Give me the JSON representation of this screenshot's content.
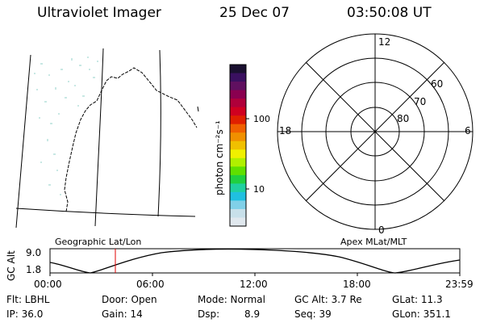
{
  "header": {
    "instrument": "Ultraviolet Imager",
    "date": "25 Dec 07",
    "time": "03:50:08 UT"
  },
  "colorbar": {
    "unit": "photon cm⁻²s⁻¹",
    "ticks": [
      {
        "label": "100"
      },
      {
        "label": "10"
      }
    ],
    "colors": [
      "#1a1030",
      "#3a1060",
      "#601060",
      "#8a0050",
      "#b0003a",
      "#d00020",
      "#e02000",
      "#f06000",
      "#f09000",
      "#f0c000",
      "#f0f000",
      "#b0f000",
      "#60e000",
      "#20d040",
      "#20d0a0",
      "#20c0e0",
      "#80d0e8",
      "#c8e0ea",
      "#e0e8ee"
    ]
  },
  "polar": {
    "labels": {
      "top": "12",
      "bottom": "0",
      "left": "18",
      "right": "6",
      "lat60": "60",
      "lat70": "70",
      "lat80": "80"
    }
  },
  "timeline": {
    "left_caption": "Geographic Lat/Lon",
    "right_caption": "Apex MLat/MLT",
    "axis_label": "GC Alt",
    "y_top": "9.0",
    "y_bottom": "1.8",
    "x_ticks": [
      "00:00",
      "06:00",
      "12:00",
      "18:00",
      "23:59"
    ]
  },
  "status": {
    "row1": {
      "flt": "Flt: LBHL",
      "door": "Door: Open",
      "mode": "Mode: Normal",
      "gcalt": "GC Alt: 3.7 Re",
      "glat": "GLat:  11.3"
    },
    "row2": {
      "ip": "IP: 36.0",
      "gain": "Gain: 14",
      "dsp_label": "Dsp:",
      "dsp_value": "8.9",
      "seq": "Seq: 39",
      "glon": "GLon: 351.1"
    }
  }
}
